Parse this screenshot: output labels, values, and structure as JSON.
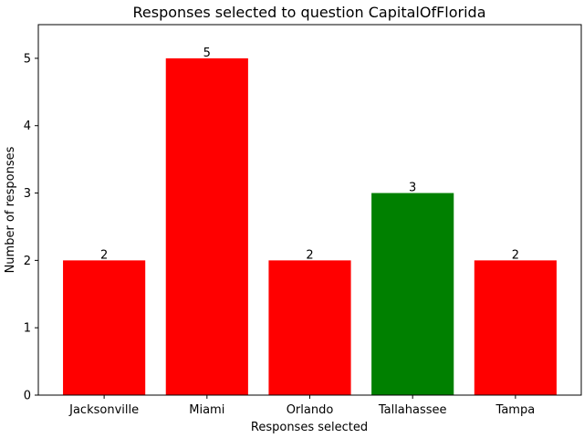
{
  "chart_data": {
    "type": "bar",
    "title": "Responses selected to question CapitalOfFlorida",
    "xlabel": "Responses selected",
    "ylabel": "Number of responses",
    "categories": [
      "Jacksonville",
      "Miami",
      "Orlando",
      "Tallahassee",
      "Tampa"
    ],
    "values": [
      2,
      5,
      2,
      3,
      2
    ],
    "bar_colors": [
      "#ff0000",
      "#ff0000",
      "#ff0000",
      "#008000",
      "#ff0000"
    ],
    "ylim": [
      0,
      5.5
    ],
    "yticks": [
      0,
      1,
      2,
      3,
      4,
      5
    ],
    "data_labels": [
      "2",
      "5",
      "2",
      "3",
      "2"
    ],
    "grid": false,
    "legend": "none"
  }
}
